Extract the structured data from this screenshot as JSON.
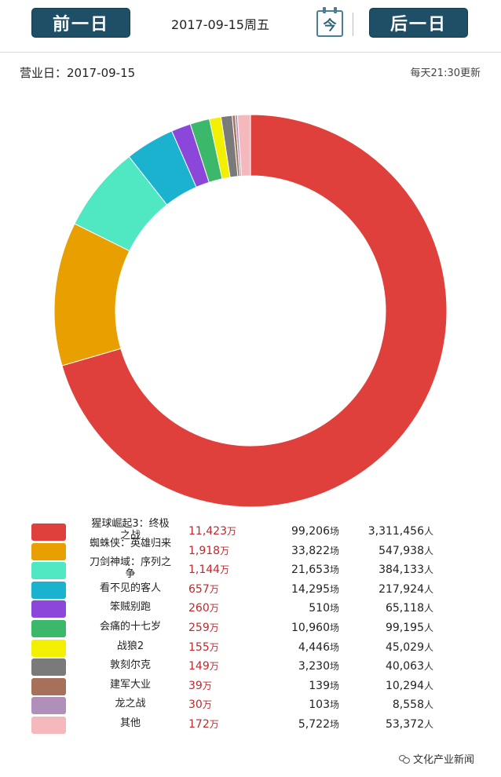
{
  "header": {
    "prev_label": "前一日",
    "date_label": "2017-09-15周五",
    "today_label": "今",
    "next_label": "后一日"
  },
  "info": {
    "business_date": "营业日：2017-09-15",
    "update_note": "每天21:30更新"
  },
  "chart_data": {
    "type": "pie",
    "style": "donut",
    "slices": [
      {
        "name": "猩球崛起3：终极之战",
        "value": 11423,
        "color": "#e0403b"
      },
      {
        "name": "蜘蛛侠：英雄归来",
        "value": 1918,
        "color": "#e8a000"
      },
      {
        "name": "刀剑神域：序列之争",
        "value": 1144,
        "color": "#4fe8c2"
      },
      {
        "name": "看不见的客人",
        "value": 657,
        "color": "#1ab2cf"
      },
      {
        "name": "笨贼别跑",
        "value": 260,
        "color": "#8a47d9"
      },
      {
        "name": "会痛的十七岁",
        "value": 259,
        "color": "#3cb86a"
      },
      {
        "name": "战狼2",
        "value": 155,
        "color": "#f2f000"
      },
      {
        "name": "敦刻尔克",
        "value": 149,
        "color": "#7a7a7a"
      },
      {
        "name": "建军大业",
        "value": 39,
        "color": "#a6705a"
      },
      {
        "name": "龙之战",
        "value": 30,
        "color": "#b090b8"
      },
      {
        "name": "其他",
        "value": 172,
        "color": "#f5b8bc"
      }
    ]
  },
  "legend": {
    "box_unit": "万",
    "show_unit": "场",
    "people_unit": "人",
    "rows": [
      {
        "name": "猩球崛起3：终极之战",
        "box": "11,423",
        "shows": "99,206",
        "people": "3,311,456"
      },
      {
        "name": "蜘蛛侠：英雄归来",
        "box": "1,918",
        "shows": "33,822",
        "people": "547,938"
      },
      {
        "name": "刀剑神域：序列之争",
        "box": "1,144",
        "shows": "21,653",
        "people": "384,133"
      },
      {
        "name": "看不见的客人",
        "box": "657",
        "shows": "14,295",
        "people": "217,924"
      },
      {
        "name": "笨贼别跑",
        "box": "260",
        "shows": "510",
        "people": "65,118"
      },
      {
        "name": "会痛的十七岁",
        "box": "259",
        "shows": "10,960",
        "people": "99,195"
      },
      {
        "name": "战狼2",
        "box": "155",
        "shows": "4,446",
        "people": "45,029"
      },
      {
        "name": "敦刻尔克",
        "box": "149",
        "shows": "3,230",
        "people": "40,063"
      },
      {
        "name": "建军大业",
        "box": "39",
        "shows": "139",
        "people": "10,294"
      },
      {
        "name": "龙之战",
        "box": "30",
        "shows": "103",
        "people": "8,558"
      },
      {
        "name": "其他",
        "box": "172",
        "shows": "5,722",
        "people": "53,372"
      }
    ]
  },
  "watermark": {
    "text": "文化产业新闻",
    "icon": "wechat-icon"
  }
}
